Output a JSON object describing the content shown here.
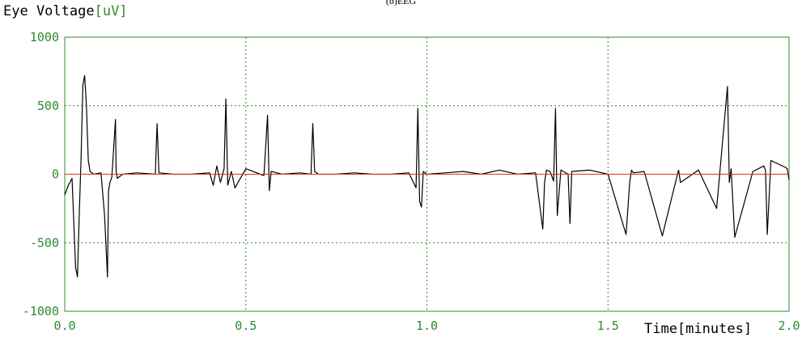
{
  "chart_data": {
    "type": "line",
    "title": "(b)EEG",
    "ylabel": "Eye Voltage",
    "ylabel_unit": "[uV]",
    "xlabel": "Time[minutes]",
    "xlim": [
      0.0,
      2.0
    ],
    "ylim": [
      -1000,
      1000
    ],
    "x_ticks": [
      "0.0",
      "0.5",
      "1.0",
      "1.5",
      "2.0"
    ],
    "y_ticks": [
      "1000",
      "500",
      "0",
      "-500",
      "-1000"
    ],
    "grid": true,
    "series": [
      {
        "color": "#000000",
        "x": [
          0.0,
          0.01,
          0.02,
          0.03,
          0.035,
          0.04,
          0.045,
          0.05,
          0.055,
          0.06,
          0.065,
          0.07,
          0.08,
          0.1,
          0.11,
          0.118,
          0.121,
          0.125,
          0.13,
          0.14,
          0.142,
          0.145,
          0.16,
          0.2,
          0.25,
          0.255,
          0.26,
          0.3,
          0.35,
          0.4,
          0.41,
          0.42,
          0.43,
          0.44,
          0.445,
          0.45,
          0.46,
          0.47,
          0.5,
          0.55,
          0.56,
          0.565,
          0.57,
          0.6,
          0.65,
          0.68,
          0.685,
          0.69,
          0.7,
          0.75,
          0.8,
          0.85,
          0.9,
          0.95,
          0.97,
          0.975,
          0.98,
          0.985,
          0.99,
          1.0,
          1.05,
          1.1,
          1.15,
          1.2,
          1.25,
          1.3,
          1.32,
          1.325,
          1.33,
          1.34,
          1.35,
          1.355,
          1.36,
          1.37,
          1.39,
          1.395,
          1.4,
          1.45,
          1.5,
          1.55,
          1.56,
          1.565,
          1.57,
          1.6,
          1.65,
          1.69,
          1.695,
          1.7,
          1.75,
          1.8,
          1.83,
          1.835,
          1.84,
          1.85,
          1.9,
          1.93,
          1.935,
          1.94,
          1.95,
          1.99,
          1.995,
          2.0
        ],
        "y": [
          -150,
          -80,
          -30,
          -680,
          -750,
          -300,
          100,
          650,
          720,
          500,
          100,
          20,
          0,
          10,
          -300,
          -750,
          -120,
          -60,
          -20,
          400,
          20,
          -30,
          0,
          10,
          0,
          370,
          10,
          0,
          0,
          10,
          -80,
          60,
          -60,
          40,
          550,
          -80,
          20,
          -100,
          40,
          -10,
          430,
          -120,
          20,
          0,
          10,
          0,
          370,
          20,
          0,
          0,
          10,
          0,
          0,
          10,
          -100,
          480,
          -200,
          -240,
          20,
          0,
          10,
          20,
          0,
          30,
          0,
          10,
          -400,
          -60,
          30,
          20,
          -50,
          480,
          -300,
          30,
          0,
          -360,
          20,
          30,
          0,
          -440,
          -60,
          30,
          10,
          20,
          -450,
          -20,
          30,
          -60,
          30,
          -250,
          640,
          -60,
          40,
          -460,
          20,
          60,
          30,
          -440,
          100,
          50,
          40,
          -40
        ]
      },
      {
        "color": "#e0301e",
        "x": [
          0.0,
          2.0
        ],
        "y": [
          0,
          0
        ]
      }
    ]
  }
}
